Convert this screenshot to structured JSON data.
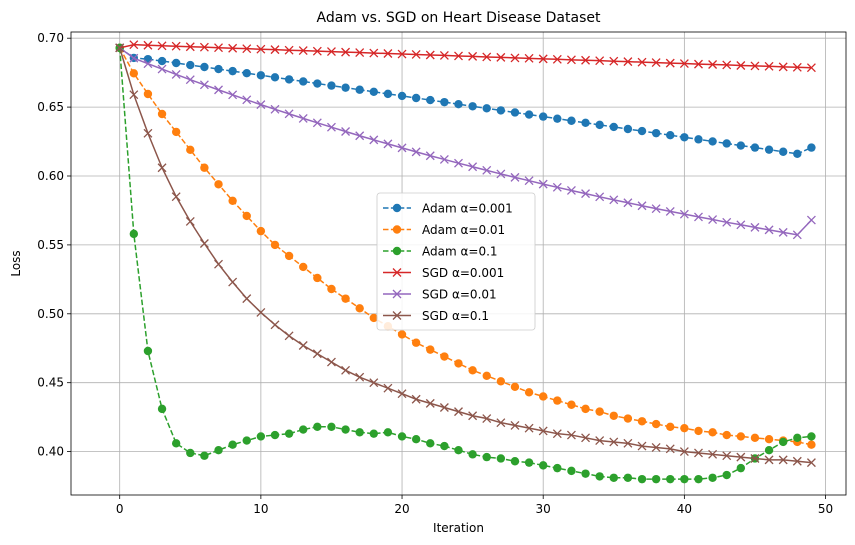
{
  "chart_data": {
    "type": "line",
    "title": "Adam vs. SGD on Heart Disease Dataset",
    "xlabel": "Iteration",
    "ylabel": "Loss",
    "xlim": [
      -3.45,
      51.45
    ],
    "ylim": [
      0.3685,
      0.7045
    ],
    "xticks": [
      0,
      10,
      20,
      30,
      40,
      50
    ],
    "yticks": [
      0.4,
      0.45,
      0.5,
      0.55,
      0.6,
      0.65,
      0.7
    ],
    "ytick_labels": [
      "0.40",
      "0.45",
      "0.50",
      "0.55",
      "0.60",
      "0.65",
      "0.70"
    ],
    "grid": true,
    "legend_position": "center",
    "series": [
      {
        "name": "Adam α=0.001",
        "color": "#1f77b4",
        "linestyle": "dashed",
        "marker": "circle",
        "values": [
          0.693,
          0.6857,
          0.6848,
          0.6834,
          0.682,
          0.6805,
          0.6791,
          0.6776,
          0.6761,
          0.6746,
          0.6731,
          0.6716,
          0.6701,
          0.6686,
          0.6671,
          0.6656,
          0.6641,
          0.6626,
          0.6611,
          0.6596,
          0.6581,
          0.6566,
          0.6551,
          0.6536,
          0.6521,
          0.6506,
          0.6491,
          0.6476,
          0.6461,
          0.6446,
          0.6431,
          0.6416,
          0.6401,
          0.6386,
          0.6371,
          0.6356,
          0.6341,
          0.6326,
          0.6311,
          0.6296,
          0.6281,
          0.6266,
          0.6251,
          0.6236,
          0.6221,
          0.6206,
          0.6191,
          0.6176,
          0.6161,
          0.6206
        ]
      },
      {
        "name": "Adam α=0.01",
        "color": "#ff7f0e",
        "linestyle": "dashed",
        "marker": "circle",
        "values": [
          0.693,
          0.6745,
          0.6595,
          0.645,
          0.632,
          0.619,
          0.606,
          0.594,
          0.582,
          0.571,
          0.56,
          0.55,
          0.542,
          0.534,
          0.526,
          0.518,
          0.511,
          0.504,
          0.497,
          0.491,
          0.485,
          0.479,
          0.474,
          0.469,
          0.464,
          0.459,
          0.455,
          0.451,
          0.447,
          0.443,
          0.44,
          0.437,
          0.434,
          0.431,
          0.429,
          0.426,
          0.424,
          0.422,
          0.42,
          0.418,
          0.417,
          0.415,
          0.414,
          0.412,
          0.411,
          0.41,
          0.409,
          0.408,
          0.407,
          0.405
        ]
      },
      {
        "name": "Adam α=0.1",
        "color": "#2ca02c",
        "linestyle": "dashed",
        "marker": "circle",
        "values": [
          0.693,
          0.558,
          0.473,
          0.431,
          0.406,
          0.399,
          0.397,
          0.401,
          0.405,
          0.408,
          0.411,
          0.412,
          0.413,
          0.416,
          0.418,
          0.418,
          0.416,
          0.414,
          0.413,
          0.414,
          0.411,
          0.409,
          0.406,
          0.404,
          0.401,
          0.398,
          0.396,
          0.395,
          0.393,
          0.392,
          0.39,
          0.388,
          0.386,
          0.384,
          0.382,
          0.381,
          0.381,
          0.38,
          0.38,
          0.38,
          0.38,
          0.38,
          0.381,
          0.383,
          0.388,
          0.395,
          0.401,
          0.407,
          0.41,
          0.411
        ]
      },
      {
        "name": "SGD α=0.001",
        "color": "#d62728",
        "linestyle": "solid",
        "marker": "x",
        "values": [
          0.693,
          0.6953,
          0.6949,
          0.6945,
          0.6942,
          0.6938,
          0.6935,
          0.6931,
          0.6927,
          0.6924,
          0.692,
          0.6917,
          0.6913,
          0.691,
          0.6906,
          0.6903,
          0.6899,
          0.6896,
          0.6892,
          0.6889,
          0.6885,
          0.6882,
          0.6878,
          0.6875,
          0.6871,
          0.6868,
          0.6864,
          0.6861,
          0.6857,
          0.6854,
          0.685,
          0.6847,
          0.6843,
          0.684,
          0.6837,
          0.6833,
          0.683,
          0.6826,
          0.6823,
          0.6819,
          0.6816,
          0.6812,
          0.6809,
          0.6806,
          0.6802,
          0.6799,
          0.6796,
          0.6792,
          0.6789,
          0.6786
        ]
      },
      {
        "name": "SGD α=0.01",
        "color": "#9467bd",
        "linestyle": "solid",
        "marker": "x",
        "values": [
          0.693,
          0.6855,
          0.6815,
          0.6776,
          0.6737,
          0.6699,
          0.6662,
          0.6625,
          0.6589,
          0.6553,
          0.6518,
          0.6484,
          0.6451,
          0.6418,
          0.6386,
          0.6354,
          0.6323,
          0.6292,
          0.6262,
          0.6233,
          0.6204,
          0.6175,
          0.6147,
          0.612,
          0.6093,
          0.6067,
          0.6041,
          0.6015,
          0.599,
          0.5966,
          0.5941,
          0.5918,
          0.5895,
          0.5872,
          0.5849,
          0.5827,
          0.5806,
          0.5784,
          0.5763,
          0.5743,
          0.5723,
          0.5703,
          0.5684,
          0.5664,
          0.5646,
          0.5627,
          0.5609,
          0.5591,
          0.5573,
          0.568
        ]
      },
      {
        "name": "SGD α=0.1",
        "color": "#8c564b",
        "linestyle": "solid",
        "marker": "x",
        "values": [
          0.693,
          0.659,
          0.631,
          0.606,
          0.585,
          0.567,
          0.551,
          0.536,
          0.523,
          0.511,
          0.501,
          0.492,
          0.484,
          0.477,
          0.471,
          0.465,
          0.459,
          0.454,
          0.45,
          0.446,
          0.442,
          0.438,
          0.435,
          0.432,
          0.429,
          0.426,
          0.424,
          0.421,
          0.419,
          0.417,
          0.415,
          0.413,
          0.412,
          0.41,
          0.408,
          0.407,
          0.406,
          0.404,
          0.403,
          0.402,
          0.4,
          0.399,
          0.398,
          0.397,
          0.396,
          0.395,
          0.394,
          0.394,
          0.393,
          0.392
        ]
      }
    ]
  }
}
